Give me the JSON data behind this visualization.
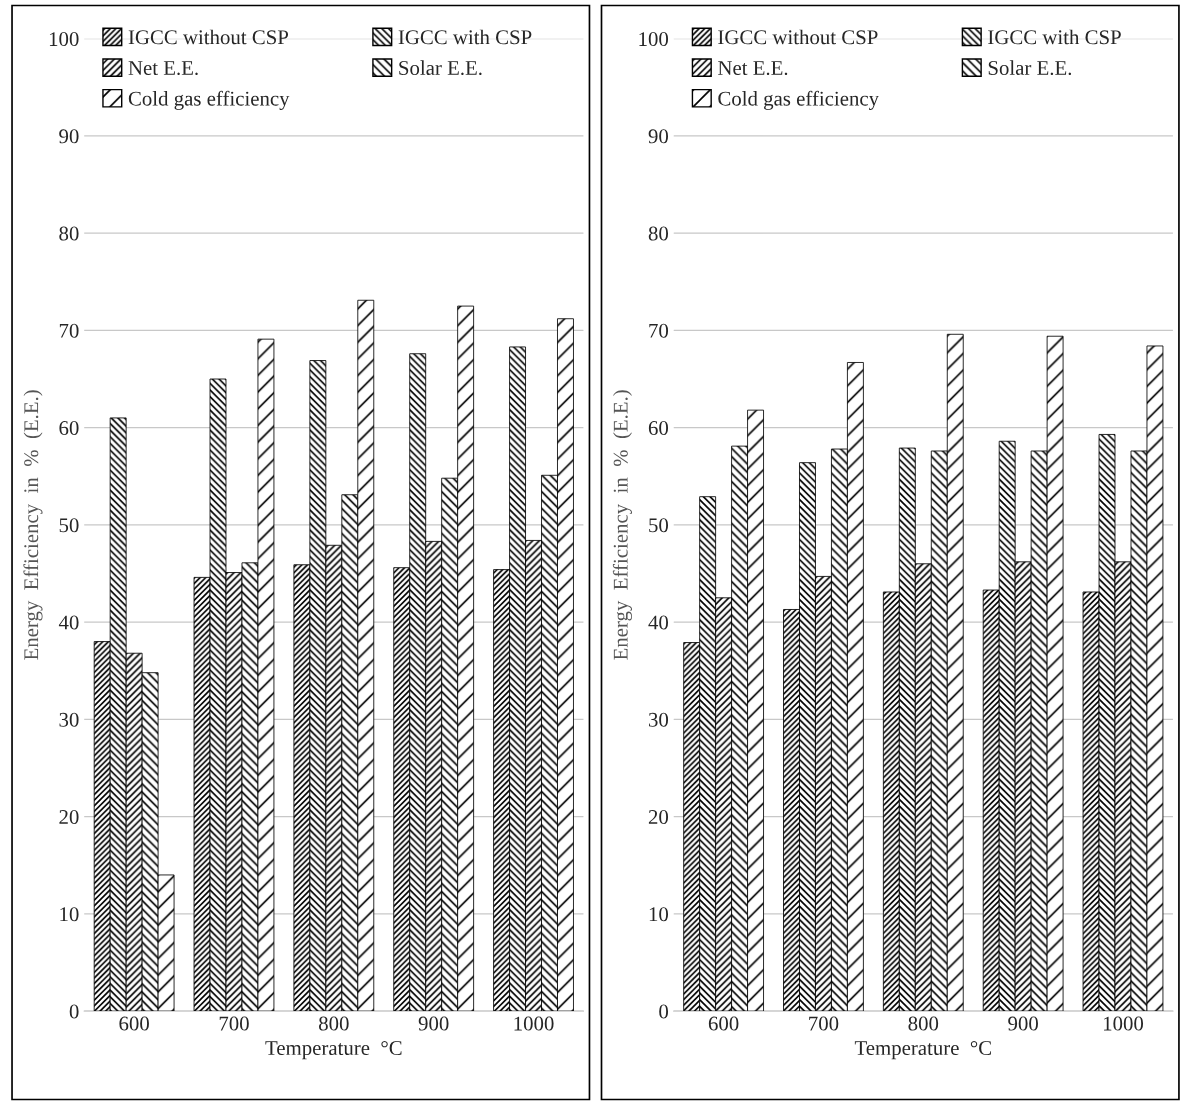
{
  "chart_data": [
    {
      "type": "bar",
      "xlabel": "Temperature  °C",
      "ylabel": "Energy  Efficiency  in  %  (E.E.)",
      "categories": [
        "600",
        "700",
        "800",
        "900",
        "1000"
      ],
      "ylim": [
        0,
        100
      ],
      "yticks": [
        0,
        10,
        20,
        30,
        40,
        50,
        60,
        70,
        80,
        90,
        100
      ],
      "grid": "y",
      "legend": "top left",
      "series": [
        {
          "name": "IGCC without CSP",
          "color": "#000000",
          "values": [
            38,
            44.6,
            45.9,
            45.6,
            45.4
          ]
        },
        {
          "name": "IGCC with CSP",
          "color": "#000000",
          "values": [
            61,
            65,
            66.9,
            67.6,
            68.3
          ]
        },
        {
          "name": "Net E.E.",
          "color": "#000000",
          "values": [
            36.8,
            45.1,
            47.9,
            48.3,
            48.4
          ]
        },
        {
          "name": "Solar E.E.",
          "color": "#000000",
          "values": [
            34.8,
            46.1,
            53.1,
            54.8,
            55.1
          ]
        },
        {
          "name": "Cold gas efficiency",
          "color": "#000000",
          "values": [
            14,
            69.1,
            73.1,
            72.5,
            71.2
          ]
        }
      ]
    },
    {
      "type": "bar",
      "xlabel": "Temperature  °C",
      "ylabel": "Energy  Efficiency  in  %  (E.E.)",
      "categories": [
        "600",
        "700",
        "800",
        "900",
        "1000"
      ],
      "ylim": [
        0,
        100
      ],
      "yticks": [
        0,
        10,
        20,
        30,
        40,
        50,
        60,
        70,
        80,
        90,
        100
      ],
      "grid": "y",
      "legend": "top left",
      "series": [
        {
          "name": "IGCC without CSP",
          "color": "#000000",
          "values": [
            37.9,
            41.3,
            43.1,
            43.3,
            43.1
          ]
        },
        {
          "name": "IGCC with CSP",
          "color": "#000000",
          "values": [
            52.9,
            56.4,
            57.9,
            58.6,
            59.3
          ]
        },
        {
          "name": "Net E.E.",
          "color": "#000000",
          "values": [
            42.5,
            44.7,
            46,
            46.2,
            46.2
          ]
        },
        {
          "name": "Solar E.E.",
          "color": "#000000",
          "values": [
            58.1,
            57.8,
            57.6,
            57.6,
            57.6
          ]
        },
        {
          "name": "Cold gas efficiency",
          "color": "#000000",
          "values": [
            61.8,
            66.7,
            69.6,
            69.4,
            68.4
          ]
        }
      ]
    }
  ]
}
